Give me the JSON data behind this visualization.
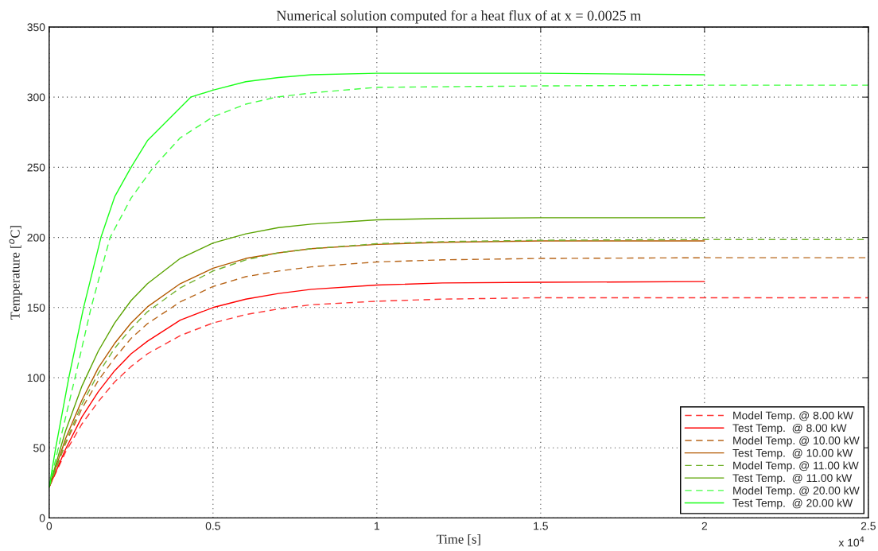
{
  "chart_data": {
    "type": "line",
    "title": "Numerical solution computed for a heat flux of at x = 0.0025 m",
    "xlabel": "Time [s]",
    "ylabel": "Temperature [$^{o}$C]",
    "annotations": [
      "x 10$^{4}$"
    ],
    "xlim": [
      0,
      2.5
    ],
    "xticks": [
      0,
      0.5,
      1,
      1.5,
      2,
      2.5
    ],
    "ylim": [
      0,
      350
    ],
    "yticks": [
      0,
      50,
      100,
      150,
      200,
      250,
      300,
      350
    ],
    "grid": true,
    "legend": "bottom right",
    "marker": "none",
    "series": [
      {
        "name": "Model Temp. @ 8.00 kW",
        "color": "#ff3333",
        "line_style": "dashed",
        "x": [
          0,
          0.05,
          0.1,
          0.15,
          0.2,
          0.25,
          0.3,
          0.4,
          0.5,
          0.6,
          0.7,
          0.8,
          1.0,
          1.2,
          1.5,
          2.0,
          2.5
        ],
        "values": [
          22,
          47,
          67,
          83,
          97,
          108,
          117,
          130,
          139,
          145,
          149,
          152,
          154.5,
          156,
          157,
          157,
          157
        ]
      },
      {
        "name": "Test Temp.  @ 8.00 kW",
        "color": "#ff0000",
        "line_style": "solid",
        "x": [
          0,
          0.05,
          0.1,
          0.15,
          0.2,
          0.25,
          0.3,
          0.4,
          0.5,
          0.6,
          0.7,
          0.8,
          1.0,
          1.2,
          1.5,
          2.0
        ],
        "values": [
          22,
          49,
          72,
          90,
          105,
          117,
          126,
          141,
          150,
          156,
          160,
          163,
          166,
          167.5,
          168,
          168.5
        ]
      },
      {
        "name": "Model Temp. @ 10.00 kW",
        "color": "#b8661a",
        "line_style": "dashed",
        "x": [
          0,
          0.05,
          0.1,
          0.15,
          0.2,
          0.25,
          0.3,
          0.4,
          0.5,
          0.6,
          0.7,
          0.8,
          1.0,
          1.2,
          1.5,
          2.0,
          2.5
        ],
        "values": [
          22,
          53,
          78,
          98,
          114,
          128,
          138.5,
          154,
          165,
          172,
          176,
          179,
          182.5,
          184,
          185,
          185.5,
          185.5
        ]
      },
      {
        "name": "Test Temp.  @ 10.00 kW",
        "color": "#b35900",
        "line_style": "solid",
        "x": [
          0,
          0.05,
          0.1,
          0.15,
          0.2,
          0.25,
          0.3,
          0.4,
          0.5,
          0.6,
          0.7,
          0.8,
          1.0,
          1.2,
          1.5,
          2.0
        ],
        "values": [
          22,
          56.5,
          84,
          107,
          124.5,
          139,
          150.5,
          167,
          178,
          185,
          189,
          192,
          195,
          196.5,
          197.5,
          197.5
        ]
      },
      {
        "name": "Model Temp. @ 11.00 kW",
        "color": "#73b330",
        "line_style": "dashed",
        "x": [
          0,
          0.05,
          0.1,
          0.15,
          0.2,
          0.25,
          0.3,
          0.4,
          0.5,
          0.6,
          0.7,
          0.8,
          1.0,
          1.2,
          1.5,
          2.0,
          2.5
        ],
        "values": [
          22,
          54,
          81,
          103,
          121,
          135,
          147,
          164,
          176,
          184,
          189,
          192,
          195.5,
          197,
          198,
          198.5,
          198.5
        ]
      },
      {
        "name": "Test Temp.  @ 11.00 kW",
        "color": "#5aa300",
        "line_style": "solid",
        "x": [
          0,
          0.05,
          0.1,
          0.15,
          0.2,
          0.25,
          0.3,
          0.4,
          0.5,
          0.6,
          0.7,
          0.8,
          1.0,
          1.2,
          1.5,
          2.0
        ],
        "values": [
          22,
          62,
          94,
          119,
          139,
          155,
          167,
          185,
          196,
          202.5,
          207,
          209.5,
          212.5,
          213.5,
          214,
          214
        ]
      },
      {
        "name": "Model Temp. @ 20.00 kW",
        "color": "#40ff40",
        "line_style": "dashed",
        "x": [
          0,
          0.028,
          0.079,
          0.128,
          0.186,
          0.25,
          0.318,
          0.4,
          0.5,
          0.6,
          0.694,
          0.8,
          1.0,
          1.5,
          2.0,
          2.5
        ],
        "values": [
          22,
          50,
          100,
          150,
          200,
          228,
          250,
          271,
          286,
          295,
          300,
          303,
          307,
          308,
          308.5,
          308.5
        ]
      },
      {
        "name": "Test Temp.  @ 20.00 kW",
        "color": "#19ff19",
        "line_style": "solid",
        "x": [
          0,
          0.02,
          0.06,
          0.105,
          0.158,
          0.2,
          0.25,
          0.3,
          0.432,
          0.5,
          0.6,
          0.7,
          0.8,
          1.0,
          1.5,
          2.0
        ],
        "values": [
          22,
          50,
          100,
          150,
          200,
          229,
          250,
          269,
          300,
          305,
          311,
          314,
          316,
          317,
          317,
          316
        ]
      }
    ]
  }
}
